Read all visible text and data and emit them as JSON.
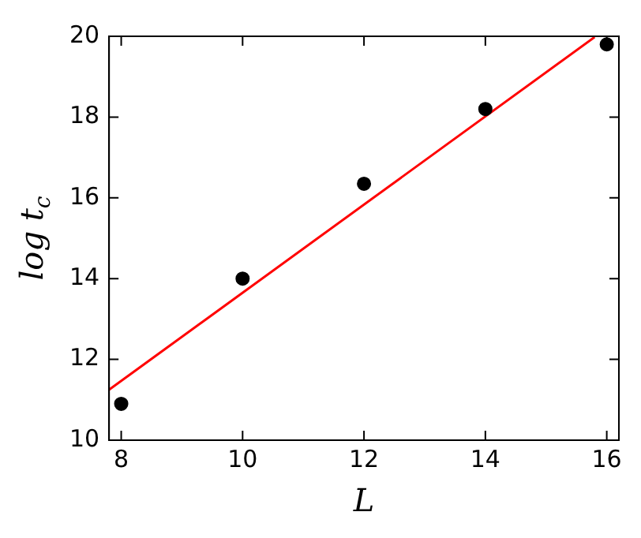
{
  "chart_data": {
    "type": "scatter",
    "xlabel": "L",
    "ylabel": "log t$_{c}$",
    "xlim": [
      7.8,
      16.2
    ],
    "ylim": [
      10,
      20
    ],
    "xticks": [
      8,
      10,
      12,
      14,
      16
    ],
    "yticks": [
      10,
      12,
      14,
      16,
      18,
      20
    ],
    "grid": false,
    "legend": false,
    "marker": "circle",
    "series": [
      {
        "type": "scatter",
        "color": "#000000",
        "x": [
          8,
          10,
          12,
          14,
          16
        ],
        "values": [
          10.9,
          14.0,
          16.35,
          18.2,
          19.8
        ]
      },
      {
        "type": "line",
        "color": "#ff0000",
        "marker": "none",
        "x": [
          7.8,
          15.8
        ],
        "values": [
          11.25,
          19.98
        ]
      }
    ]
  }
}
